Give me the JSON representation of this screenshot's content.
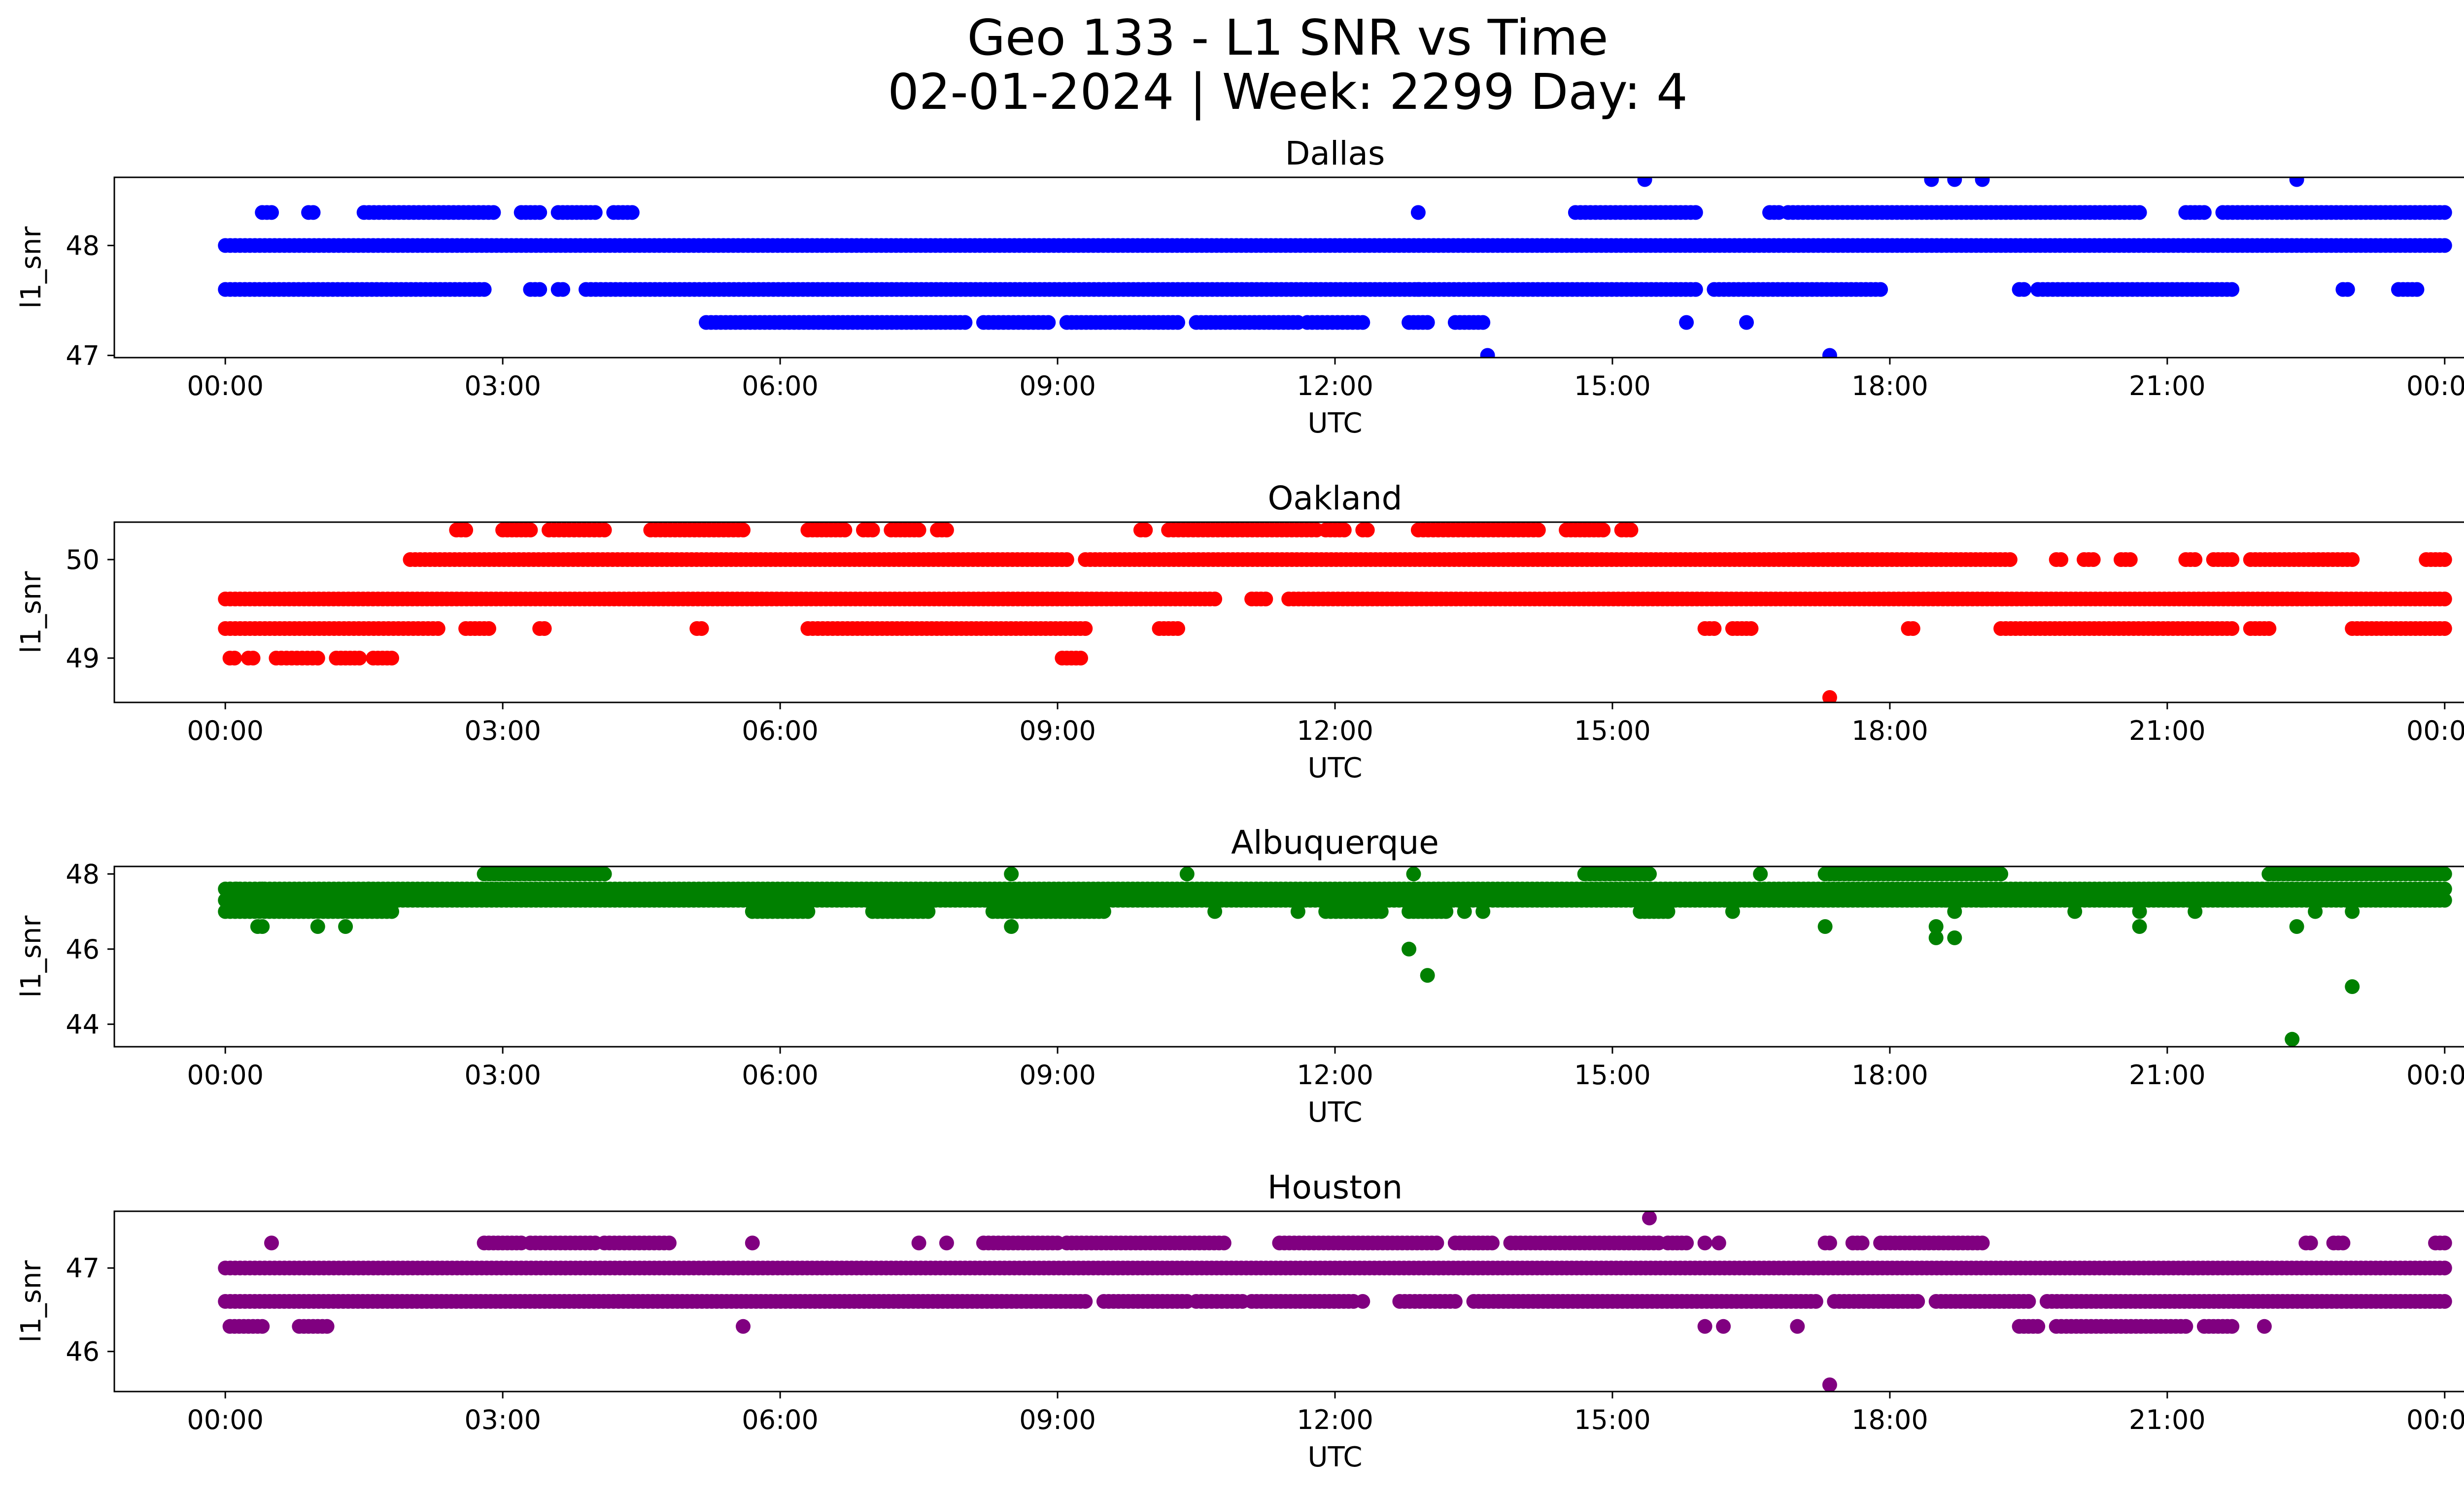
{
  "figure": {
    "title_line1": "Geo 133 - L1 SNR vs Time",
    "title_line2": "02-01-2024 | Week: 2299 Day: 4"
  },
  "chart_data": [
    {
      "type": "scatter",
      "title": "Dallas",
      "xlabel": "UTC",
      "ylabel": "l1_snr",
      "color": "#0000ff",
      "xlim_hours": [
        -1.2,
        25.2
      ],
      "ylim": [
        46.98,
        48.62
      ],
      "yticks": [
        47,
        48
      ],
      "xticks": [
        "00:00",
        "03:00",
        "06:00",
        "09:00",
        "12:00",
        "15:00",
        "18:00",
        "21:00",
        "00:00"
      ],
      "grid": false,
      "bands": [
        {
          "y": 48.0,
          "segments": [
            [
              0.0,
              24.0
            ]
          ]
        },
        {
          "y": 47.6,
          "segments": [
            [
              0.0,
              2.8
            ],
            [
              3.3,
              3.4
            ],
            [
              3.6,
              3.65
            ],
            [
              3.9,
              15.9
            ],
            [
              16.1,
              17.9
            ],
            [
              19.4,
              19.45
            ],
            [
              19.6,
              21.7
            ],
            [
              22.9,
              22.95
            ],
            [
              23.5,
              23.7
            ]
          ]
        },
        {
          "y": 48.3,
          "segments": [
            [
              0.4,
              0.5
            ],
            [
              0.9,
              0.95
            ],
            [
              1.5,
              2.9
            ],
            [
              3.2,
              3.4
            ],
            [
              3.6,
              4.0
            ],
            [
              4.2,
              4.4
            ],
            [
              14.6,
              15.9
            ],
            [
              16.7,
              16.8
            ],
            [
              16.9,
              20.7
            ],
            [
              21.2,
              21.4
            ],
            [
              21.6,
              24.0
            ]
          ]
        },
        {
          "y": 47.3,
          "segments": [
            [
              5.2,
              8.0
            ],
            [
              8.2,
              8.9
            ],
            [
              9.1,
              10.3
            ],
            [
              10.5,
              11.6
            ],
            [
              11.7,
              12.3
            ],
            [
              12.8,
              13.0
            ],
            [
              13.3,
              13.6
            ]
          ]
        }
      ],
      "points": [
        {
          "x": 12.9,
          "y": 48.3
        },
        {
          "x": 15.35,
          "y": 48.6
        },
        {
          "x": 18.45,
          "y": 48.6
        },
        {
          "x": 18.7,
          "y": 48.6
        },
        {
          "x": 19.0,
          "y": 48.6
        },
        {
          "x": 22.4,
          "y": 48.6
        },
        {
          "x": 13.65,
          "y": 47.0
        },
        {
          "x": 17.35,
          "y": 47.0
        },
        {
          "x": 15.8,
          "y": 47.3
        },
        {
          "x": 16.45,
          "y": 47.3
        },
        {
          "x": 12.9,
          "y": 47.6
        }
      ]
    },
    {
      "type": "scatter",
      "title": "Oakland",
      "xlabel": "UTC",
      "ylabel": "l1_snr",
      "color": "#ff0000",
      "xlim_hours": [
        -1.2,
        25.2
      ],
      "ylim": [
        48.55,
        50.38
      ],
      "yticks": [
        49,
        50
      ],
      "xticks": [
        "00:00",
        "03:00",
        "06:00",
        "09:00",
        "12:00",
        "15:00",
        "18:00",
        "21:00",
        "00:00"
      ],
      "grid": false,
      "bands": [
        {
          "y": 49.6,
          "segments": [
            [
              0.0,
              10.7
            ],
            [
              11.1,
              11.25
            ],
            [
              11.5,
              24.0
            ]
          ]
        },
        {
          "y": 49.3,
          "segments": [
            [
              0.0,
              2.3
            ],
            [
              2.6,
              2.85
            ],
            [
              3.4,
              3.45
            ],
            [
              5.1,
              5.15
            ],
            [
              6.3,
              9.3
            ],
            [
              10.1,
              10.3
            ],
            [
              16.0,
              16.1
            ],
            [
              16.3,
              16.5
            ],
            [
              18.2,
              18.25
            ],
            [
              19.2,
              21.7
            ],
            [
              21.9,
              22.1
            ],
            [
              23.0,
              24.0
            ]
          ]
        },
        {
          "y": 50.0,
          "segments": [
            [
              2.0,
              9.1
            ],
            [
              9.3,
              19.3
            ],
            [
              19.8,
              19.85
            ],
            [
              20.1,
              20.2
            ],
            [
              20.5,
              20.6
            ],
            [
              21.2,
              21.3
            ],
            [
              21.5,
              21.7
            ],
            [
              21.9,
              23.0
            ],
            [
              23.8,
              24.0
            ]
          ]
        },
        {
          "y": 50.3,
          "segments": [
            [
              2.5,
              2.6
            ],
            [
              3.0,
              3.3
            ],
            [
              3.5,
              4.1
            ],
            [
              4.6,
              5.6
            ],
            [
              6.3,
              6.7
            ],
            [
              6.9,
              7.0
            ],
            [
              7.2,
              7.5
            ],
            [
              7.7,
              7.8
            ],
            [
              9.9,
              9.95
            ],
            [
              10.2,
              11.8
            ],
            [
              11.9,
              12.1
            ],
            [
              12.3,
              12.35
            ],
            [
              12.9,
              14.2
            ],
            [
              14.5,
              14.9
            ],
            [
              15.1,
              15.2
            ]
          ]
        },
        {
          "y": 49.0,
          "segments": [
            [
              0.05,
              0.1
            ],
            [
              0.25,
              0.3
            ],
            [
              0.55,
              1.0
            ],
            [
              1.2,
              1.45
            ],
            [
              1.6,
              1.8
            ],
            [
              9.05,
              9.25
            ]
          ]
        }
      ],
      "points": [
        {
          "x": 17.35,
          "y": 48.6
        }
      ]
    },
    {
      "type": "scatter",
      "title": "Albuquerque",
      "xlabel": "UTC",
      "ylabel": "l1_snr",
      "color": "#008000",
      "xlim_hours": [
        -1.2,
        25.2
      ],
      "ylim": [
        43.4,
        48.2
      ],
      "yticks": [
        44,
        46,
        48
      ],
      "xticks": [
        "00:00",
        "03:00",
        "06:00",
        "09:00",
        "12:00",
        "15:00",
        "18:00",
        "21:00",
        "00:00"
      ],
      "grid": false,
      "bands": [
        {
          "y": 47.6,
          "segments": [
            [
              0.0,
              24.0
            ]
          ]
        },
        {
          "y": 47.3,
          "segments": [
            [
              0.0,
              24.0
            ]
          ]
        },
        {
          "y": 47.0,
          "segments": [
            [
              0.0,
              1.8
            ],
            [
              5.7,
              6.3
            ],
            [
              7.0,
              7.6
            ],
            [
              8.3,
              9.5
            ],
            [
              11.9,
              12.5
            ],
            [
              12.8,
              13.2
            ],
            [
              15.3,
              15.6
            ]
          ]
        },
        {
          "y": 48.0,
          "segments": [
            [
              2.8,
              4.1
            ],
            [
              14.7,
              15.4
            ],
            [
              17.3,
              19.2
            ],
            [
              22.1,
              24.0
            ]
          ]
        }
      ],
      "points": [
        {
          "x": 0.05,
          "y": 47.6
        },
        {
          "x": 0.12,
          "y": 47.6
        },
        {
          "x": 0.4,
          "y": 47.6
        },
        {
          "x": 0.35,
          "y": 46.6
        },
        {
          "x": 0.4,
          "y": 46.6
        },
        {
          "x": 1.0,
          "y": 46.6
        },
        {
          "x": 1.3,
          "y": 46.6
        },
        {
          "x": 1.55,
          "y": 47.6
        },
        {
          "x": 8.5,
          "y": 46.6
        },
        {
          "x": 8.5,
          "y": 48.0
        },
        {
          "x": 10.4,
          "y": 48.0
        },
        {
          "x": 12.8,
          "y": 46.0
        },
        {
          "x": 12.85,
          "y": 48.0
        },
        {
          "x": 13.0,
          "y": 45.3
        },
        {
          "x": 13.4,
          "y": 47.0
        },
        {
          "x": 17.3,
          "y": 46.6
        },
        {
          "x": 18.5,
          "y": 46.6
        },
        {
          "x": 18.5,
          "y": 46.3
        },
        {
          "x": 18.7,
          "y": 47.0
        },
        {
          "x": 18.7,
          "y": 46.3
        },
        {
          "x": 18.6,
          "y": 47.3
        },
        {
          "x": 19.0,
          "y": 47.3
        },
        {
          "x": 20.0,
          "y": 47.0
        },
        {
          "x": 20.7,
          "y": 46.6
        },
        {
          "x": 20.7,
          "y": 47.0
        },
        {
          "x": 21.3,
          "y": 47.0
        },
        {
          "x": 22.4,
          "y": 46.6
        },
        {
          "x": 22.35,
          "y": 43.6
        },
        {
          "x": 23.0,
          "y": 45.0
        },
        {
          "x": 23.0,
          "y": 47.0
        },
        {
          "x": 22.6,
          "y": 47.0
        },
        {
          "x": 16.3,
          "y": 47.0
        },
        {
          "x": 16.6,
          "y": 48.0
        },
        {
          "x": 13.6,
          "y": 47.0
        },
        {
          "x": 10.7,
          "y": 47.0
        },
        {
          "x": 11.6,
          "y": 47.0
        }
      ]
    },
    {
      "type": "scatter",
      "title": "Houston",
      "xlabel": "UTC",
      "ylabel": "l1_snr",
      "color": "#800080",
      "xlim_hours": [
        -1.2,
        25.2
      ],
      "ylim": [
        45.52,
        47.68
      ],
      "yticks": [
        46,
        47
      ],
      "xticks": [
        "00:00",
        "03:00",
        "06:00",
        "09:00",
        "12:00",
        "15:00",
        "18:00",
        "21:00",
        "00:00"
      ],
      "grid": false,
      "bands": [
        {
          "y": 47.0,
          "segments": [
            [
              0.0,
              24.0
            ]
          ]
        },
        {
          "y": 46.6,
          "segments": [
            [
              0.0,
              9.3
            ],
            [
              9.5,
              10.4
            ],
            [
              10.5,
              11.0
            ],
            [
              11.1,
              12.2
            ],
            [
              12.7,
              13.3
            ],
            [
              13.5,
              17.2
            ],
            [
              17.4,
              18.3
            ],
            [
              18.5,
              19.5
            ],
            [
              19.7,
              24.0
            ]
          ]
        },
        {
          "y": 47.3,
          "segments": [
            [
              2.8,
              3.2
            ],
            [
              3.3,
              4.0
            ],
            [
              4.1,
              4.8
            ],
            [
              8.2,
              9.0
            ],
            [
              9.1,
              10.8
            ],
            [
              11.4,
              13.1
            ],
            [
              13.3,
              13.7
            ],
            [
              13.9,
              15.5
            ],
            [
              15.6,
              15.8
            ],
            [
              17.3,
              17.35
            ],
            [
              17.6,
              17.7
            ],
            [
              17.9,
              19.0
            ],
            [
              22.5,
              22.55
            ],
            [
              22.8,
              22.9
            ],
            [
              23.9,
              24.0
            ]
          ]
        },
        {
          "y": 46.3,
          "segments": [
            [
              0.05,
              0.4
            ],
            [
              0.8,
              1.1
            ],
            [
              19.4,
              19.6
            ],
            [
              19.8,
              21.2
            ],
            [
              21.4,
              21.7
            ]
          ]
        }
      ],
      "points": [
        {
          "x": 0.5,
          "y": 47.3
        },
        {
          "x": 5.6,
          "y": 46.3
        },
        {
          "x": 5.7,
          "y": 47.3
        },
        {
          "x": 7.5,
          "y": 47.3
        },
        {
          "x": 7.8,
          "y": 47.3
        },
        {
          "x": 15.4,
          "y": 47.6
        },
        {
          "x": 17.35,
          "y": 45.6
        },
        {
          "x": 16.0,
          "y": 46.3
        },
        {
          "x": 16.2,
          "y": 46.3
        },
        {
          "x": 17.0,
          "y": 46.3
        },
        {
          "x": 22.05,
          "y": 46.3
        },
        {
          "x": 16.0,
          "y": 47.3
        },
        {
          "x": 16.15,
          "y": 47.3
        },
        {
          "x": 12.3,
          "y": 46.6
        }
      ]
    }
  ]
}
